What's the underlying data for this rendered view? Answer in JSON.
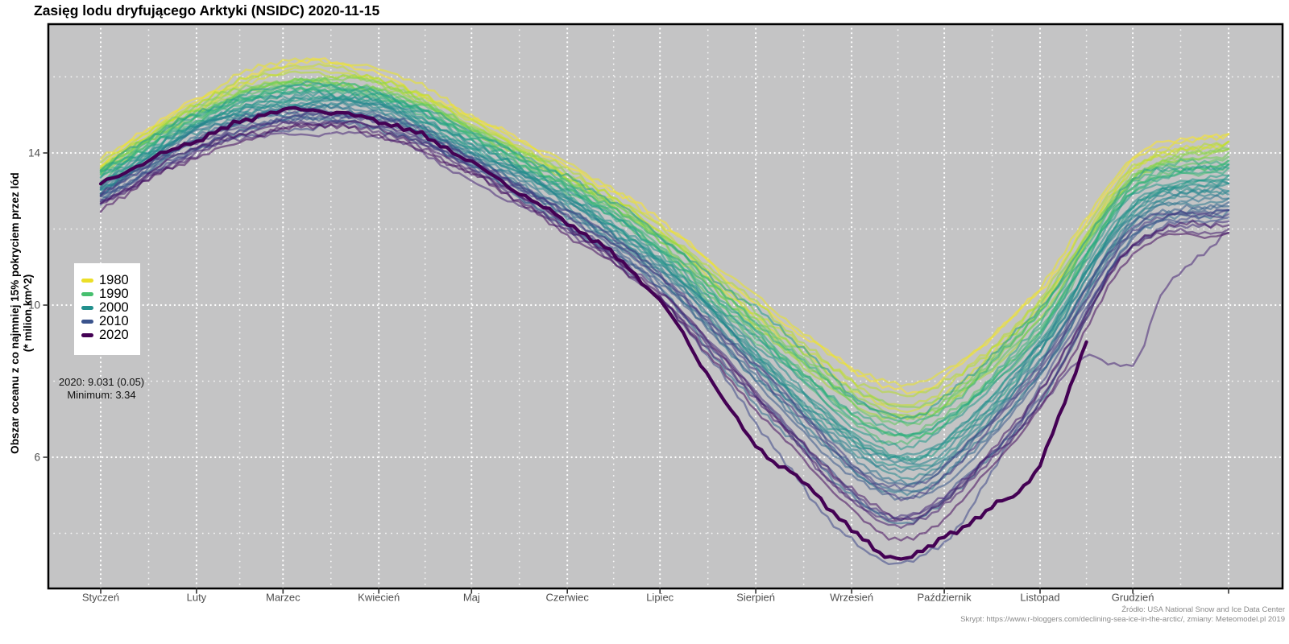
{
  "title": {
    "text": "Zasięg lodu dryfującego Arktyki (NSIDC) 2020-11-15"
  },
  "y_axis": {
    "title_line1": "Obszar oceanu z co najmniej 15% pokryciem przez lód",
    "title_line2": "(* milion km^2)",
    "tick_labels": [
      "14",
      "10",
      "6"
    ],
    "tick_values": [
      14,
      10,
      6
    ]
  },
  "x_axis": {
    "months": [
      "Styczeń",
      "Luty",
      "Marzec",
      "Kwiecień",
      "Maj",
      "Czerwiec",
      "Lipiec",
      "Sierpień",
      "Wrzesień",
      "Październik",
      "Listopad",
      "Grudzień"
    ]
  },
  "legend": {
    "entries": [
      {
        "label": "1980",
        "color": "#ecdf28"
      },
      {
        "label": "1990",
        "color": "#46bf6e"
      },
      {
        "label": "2000",
        "color": "#22908d"
      },
      {
        "label": "2010",
        "color": "#3a538c"
      },
      {
        "label": "2020",
        "color": "#440154"
      }
    ]
  },
  "annotation": {
    "line1": "2020: 9.031 (0.05)",
    "line2": "Minimum: 3.34"
  },
  "footer": {
    "line1": "Źródło: USA National Snow and Ice Data Center",
    "line2": "Skrypt: https://www.r-bloggers.com/declining-sea-ice-in-the-arctic/, zmiany: Meteomodel.pl 2019"
  },
  "chart_data": {
    "type": "line",
    "title": "Zasięg lodu dryfującego Arktyki (NSIDC) 2020-11-15",
    "xlabel": "",
    "ylabel": "Obszar oceanu z co najmniej 15% pokryciem przez lód (* milion km^2)",
    "x_unit": "day_of_year",
    "ylim": [
      2.5,
      17.4
    ],
    "grid": "white dotted, major every month / every 2 units, minor at mid-month",
    "background": "#c4c4c5",
    "y_grid_values": [
      4,
      6,
      8,
      10,
      12,
      14,
      16
    ],
    "month_start_days": [
      0,
      31,
      59,
      90,
      120,
      151,
      181,
      212,
      243,
      273,
      304,
      334,
      365
    ],
    "anchor_days": [
      0,
      31,
      59,
      90,
      120,
      151,
      181,
      212,
      243,
      259,
      273,
      304,
      334,
      365
    ],
    "palette": {
      "viridis_stops": [
        "#440154",
        "#482878",
        "#3e4989",
        "#31688e",
        "#26828e",
        "#21918c",
        "#1f9e89",
        "#35b779",
        "#6ece58",
        "#b5de2b",
        "#fde725"
      ],
      "mapping": "color = viridis((2020 - year) / 41); 1980=yellow ... 2020=dark purple"
    },
    "series": [
      {
        "year": 1979,
        "values": [
          13.7,
          15.4,
          16.3,
          16.1,
          14.9,
          13.7,
          12.2,
          10.1,
          8.3,
          7.8,
          8.1,
          10.4,
          13.8,
          14.5
        ]
      },
      {
        "year": 1980,
        "values": [
          13.8,
          15.4,
          16.4,
          16.2,
          15.0,
          13.7,
          12.2,
          10.2,
          8.4,
          7.9,
          8.2,
          10.5,
          13.8,
          14.5
        ]
      },
      {
        "year": 1981,
        "values": [
          13.6,
          15.2,
          16.1,
          15.9,
          14.8,
          13.4,
          11.9,
          9.7,
          7.8,
          7.3,
          7.6,
          10.0,
          13.5,
          14.3
        ]
      },
      {
        "year": 1982,
        "values": [
          13.6,
          15.3,
          16.2,
          16.0,
          14.8,
          13.5,
          12.0,
          9.8,
          8.0,
          7.4,
          7.8,
          10.1,
          13.5,
          14.3
        ]
      },
      {
        "year": 1983,
        "values": [
          13.7,
          15.3,
          16.1,
          15.9,
          14.8,
          13.5,
          12.0,
          10.0,
          8.1,
          7.6,
          7.9,
          10.2,
          13.6,
          14.3
        ]
      },
      {
        "year": 1984,
        "values": [
          13.5,
          15.1,
          15.8,
          15.7,
          14.6,
          13.3,
          11.7,
          9.4,
          7.5,
          7.0,
          7.3,
          9.7,
          13.3,
          14.1
        ]
      },
      {
        "year": 1985,
        "values": [
          13.5,
          15.1,
          15.9,
          15.8,
          14.7,
          13.3,
          11.8,
          9.5,
          7.6,
          7.1,
          7.4,
          9.8,
          13.3,
          14.1
        ]
      },
      {
        "year": 1986,
        "values": [
          13.6,
          15.2,
          15.9,
          15.8,
          14.7,
          13.4,
          11.9,
          9.8,
          7.8,
          7.3,
          7.6,
          10.0,
          13.4,
          14.1
        ]
      },
      {
        "year": 1987,
        "values": [
          13.5,
          15.1,
          15.8,
          15.7,
          14.6,
          13.3,
          11.8,
          9.6,
          7.6,
          7.1,
          7.4,
          9.9,
          13.3,
          14.0
        ]
      },
      {
        "year": 1988,
        "values": [
          13.5,
          15.1,
          15.8,
          15.7,
          14.6,
          13.2,
          11.7,
          9.5,
          7.5,
          6.9,
          7.3,
          9.7,
          13.2,
          13.9
        ]
      },
      {
        "year": 1989,
        "values": [
          13.4,
          15.0,
          15.7,
          15.6,
          14.5,
          13.1,
          11.5,
          9.2,
          7.2,
          6.6,
          7.0,
          9.4,
          13.0,
          13.8
        ]
      },
      {
        "year": 1990,
        "values": [
          13.3,
          14.9,
          15.6,
          15.5,
          14.4,
          13.0,
          11.4,
          9.0,
          7.0,
          6.4,
          6.8,
          9.3,
          12.9,
          13.7
        ]
      },
      {
        "year": 1991,
        "values": [
          13.3,
          14.9,
          15.6,
          15.5,
          14.4,
          13.1,
          11.5,
          9.2,
          7.1,
          6.6,
          6.9,
          9.4,
          13.0,
          13.7
        ]
      },
      {
        "year": 1992,
        "values": [
          13.5,
          15.0,
          15.7,
          15.6,
          14.5,
          13.3,
          11.7,
          9.6,
          7.5,
          7.0,
          7.3,
          9.8,
          13.2,
          13.8
        ]
      },
      {
        "year": 1993,
        "values": [
          13.4,
          14.9,
          15.6,
          15.5,
          14.4,
          13.1,
          11.5,
          9.3,
          7.1,
          6.6,
          6.9,
          9.4,
          13.0,
          13.6
        ]
      },
      {
        "year": 1994,
        "values": [
          13.4,
          14.9,
          15.6,
          15.5,
          14.4,
          13.1,
          11.5,
          9.3,
          7.2,
          6.6,
          7.0,
          9.5,
          13.0,
          13.6
        ]
      },
      {
        "year": 1995,
        "values": [
          13.2,
          14.7,
          15.4,
          15.3,
          14.2,
          12.8,
          11.2,
          8.6,
          6.5,
          5.9,
          6.3,
          8.8,
          12.6,
          13.4
        ]
      },
      {
        "year": 1996,
        "values": [
          13.5,
          15.1,
          15.7,
          15.6,
          14.5,
          13.4,
          11.8,
          9.9,
          7.7,
          7.1,
          7.5,
          10.0,
          13.2,
          13.7
        ]
      },
      {
        "year": 1997,
        "values": [
          13.3,
          14.8,
          15.5,
          15.4,
          14.3,
          13.0,
          11.4,
          9.1,
          6.9,
          6.3,
          6.7,
          9.3,
          12.8,
          13.4
        ]
      },
      {
        "year": 1998,
        "values": [
          13.2,
          14.7,
          15.4,
          15.3,
          14.2,
          12.9,
          11.2,
          8.8,
          6.6,
          6.0,
          6.4,
          9.0,
          12.6,
          13.3
        ]
      },
      {
        "year": 1999,
        "values": [
          13.1,
          14.6,
          15.3,
          15.2,
          14.1,
          12.7,
          11.1,
          8.6,
          6.3,
          5.7,
          6.1,
          8.7,
          12.5,
          13.2
        ]
      },
      {
        "year": 2000,
        "values": [
          13.2,
          14.7,
          15.4,
          15.3,
          14.2,
          12.8,
          11.2,
          8.8,
          6.6,
          6.0,
          6.4,
          9.0,
          12.6,
          13.2
        ]
      },
      {
        "year": 2001,
        "values": [
          13.2,
          14.7,
          15.4,
          15.3,
          14.2,
          12.8,
          11.2,
          8.9,
          6.6,
          6.0,
          6.4,
          9.0,
          12.6,
          13.2
        ]
      },
      {
        "year": 2002,
        "values": [
          13.0,
          14.5,
          15.2,
          15.1,
          14.0,
          12.6,
          10.9,
          8.4,
          6.1,
          5.5,
          5.9,
          8.5,
          12.3,
          13.0
        ]
      },
      {
        "year": 2003,
        "values": [
          13.1,
          14.6,
          15.3,
          15.2,
          14.1,
          12.8,
          11.1,
          8.7,
          6.4,
          5.8,
          6.2,
          8.9,
          12.5,
          13.0
        ]
      },
      {
        "year": 2004,
        "values": [
          13.1,
          14.6,
          15.2,
          15.1,
          14.0,
          12.7,
          11.0,
          8.6,
          6.2,
          5.6,
          6.0,
          8.7,
          12.4,
          12.9
        ]
      },
      {
        "year": 2005,
        "values": [
          12.9,
          14.4,
          15.1,
          15.0,
          13.9,
          12.4,
          10.7,
          8.1,
          5.7,
          5.1,
          5.5,
          8.2,
          12.1,
          12.8
        ]
      },
      {
        "year": 2006,
        "values": [
          13.0,
          14.5,
          15.1,
          15.0,
          13.9,
          12.5,
          10.9,
          8.4,
          6.0,
          5.3,
          5.8,
          8.5,
          12.2,
          12.8
        ]
      },
      {
        "year": 2007,
        "values": [
          12.7,
          14.2,
          14.8,
          14.7,
          13.6,
          12.1,
          10.4,
          7.4,
          5.0,
          4.35,
          4.8,
          7.5,
          11.7,
          12.5
        ]
      },
      {
        "year": 2008,
        "values": [
          12.9,
          14.4,
          15.0,
          14.9,
          13.8,
          12.4,
          10.7,
          8.1,
          5.7,
          5.05,
          5.5,
          8.2,
          12.0,
          12.6
        ]
      },
      {
        "year": 2009,
        "values": [
          13.0,
          14.4,
          15.1,
          15.0,
          13.9,
          12.5,
          10.8,
          8.4,
          5.9,
          5.3,
          5.7,
          8.5,
          12.1,
          12.7
        ]
      },
      {
        "year": 2010,
        "values": [
          12.8,
          14.3,
          14.9,
          14.8,
          13.7,
          12.3,
          10.6,
          8.0,
          5.5,
          4.9,
          5.3,
          8.1,
          11.9,
          12.5
        ]
      },
      {
        "year": 2011,
        "values": [
          12.7,
          14.1,
          14.8,
          14.7,
          13.6,
          12.1,
          10.4,
          7.6,
          5.1,
          4.4,
          4.9,
          7.6,
          11.7,
          12.3
        ]
      },
      {
        "year": 2012,
        "days": [
          0,
          31,
          59,
          90,
          120,
          151,
          181,
          212,
          243,
          259,
          273,
          283,
          290,
          304,
          334,
          365
        ],
        "values": [
          12.9,
          14.1,
          14.6,
          14.9,
          13.9,
          12.1,
          10.2,
          6.9,
          3.8,
          3.15,
          3.8,
          4.9,
          5.9,
          7.8,
          11.6,
          12.5
        ]
      },
      {
        "year": 2013,
        "values": [
          12.9,
          14.4,
          15.0,
          14.9,
          13.8,
          12.5,
          10.8,
          8.4,
          5.9,
          5.2,
          5.7,
          8.5,
          12.0,
          12.5
        ]
      },
      {
        "year": 2014,
        "values": [
          12.9,
          14.3,
          14.9,
          14.8,
          13.7,
          12.4,
          10.7,
          8.3,
          5.7,
          5.0,
          5.5,
          8.3,
          11.9,
          12.4
        ]
      },
      {
        "year": 2015,
        "values": [
          12.7,
          14.1,
          14.8,
          14.7,
          13.6,
          12.1,
          10.4,
          7.7,
          5.1,
          4.4,
          4.9,
          7.7,
          11.6,
          12.2
        ]
      },
      {
        "year": 2016,
        "days": [
          0,
          31,
          59,
          90,
          120,
          151,
          181,
          212,
          243,
          259,
          273,
          304,
          318,
          328,
          336,
          343,
          365
        ],
        "values": [
          12.7,
          14.0,
          14.5,
          14.4,
          13.3,
          11.9,
          10.2,
          7.6,
          4.9,
          4.3,
          5.0,
          7.3,
          8.6,
          8.4,
          8.7,
          10.3,
          11.9
        ]
      },
      {
        "year": 2017,
        "values": [
          12.6,
          14.0,
          14.7,
          14.6,
          13.5,
          12.0,
          10.2,
          7.5,
          4.9,
          4.2,
          4.7,
          7.5,
          11.5,
          12.0
        ]
      },
      {
        "year": 2018,
        "values": [
          12.7,
          14.1,
          14.7,
          14.6,
          13.5,
          12.1,
          10.3,
          7.7,
          5.1,
          4.4,
          4.9,
          7.7,
          11.6,
          12.1
        ]
      },
      {
        "year": 2019,
        "values": [
          12.5,
          13.9,
          14.6,
          14.5,
          13.4,
          11.9,
          10.1,
          7.3,
          4.6,
          3.9,
          4.4,
          7.3,
          11.3,
          11.9
        ]
      },
      {
        "year": 2020,
        "emphasis": true,
        "days": [
          0,
          31,
          59,
          90,
          120,
          151,
          181,
          196,
          212,
          227,
          243,
          252,
          259,
          266,
          273,
          283,
          290,
          297,
          304,
          312,
          319
        ],
        "values": [
          13.1,
          14.4,
          15.05,
          14.9,
          13.7,
          12.2,
          10.1,
          8.3,
          6.3,
          5.3,
          4.15,
          3.55,
          3.4,
          3.5,
          3.85,
          4.3,
          4.75,
          5.15,
          5.9,
          7.5,
          9.031
        ]
      }
    ]
  }
}
